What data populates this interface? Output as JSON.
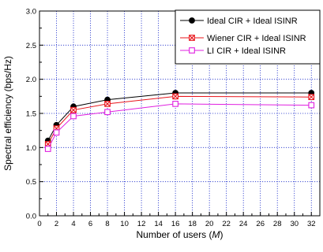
{
  "chart_data": {
    "type": "line",
    "xlabel": "Number of users (",
    "xlabel_var": "M",
    "xlabel_end": ")",
    "ylabel": "Spectral efficiency (bps/Hz)",
    "xlim": [
      0,
      33
    ],
    "ylim": [
      0.0,
      3.0
    ],
    "xticks": [
      "0",
      "2",
      "4",
      "6",
      "8",
      "10",
      "12",
      "14",
      "16",
      "18",
      "20",
      "22",
      "24",
      "26",
      "28",
      "30",
      "32"
    ],
    "yticks": [
      "0.0",
      "0.5",
      "1.0",
      "1.5",
      "2.0",
      "2.5",
      "3.0"
    ],
    "grid": true,
    "legend_position": "top-right",
    "x": [
      1,
      2,
      4,
      8,
      16,
      32
    ],
    "series": [
      {
        "name": "Ideal CIR + Ideal ISINR",
        "color": "#000000",
        "marker": "filled-circle",
        "values": [
          1.1,
          1.33,
          1.6,
          1.7,
          1.8,
          1.8
        ]
      },
      {
        "name": "Wiener CIR + Ideal ISINR",
        "color": "#e8141a",
        "marker": "crossed-square",
        "values": [
          1.05,
          1.28,
          1.55,
          1.64,
          1.75,
          1.74
        ]
      },
      {
        "name": "LI CIR + Ideal ISINR",
        "color": "#e020e0",
        "marker": "open-square",
        "values": [
          0.98,
          1.22,
          1.46,
          1.52,
          1.64,
          1.62
        ]
      }
    ]
  }
}
